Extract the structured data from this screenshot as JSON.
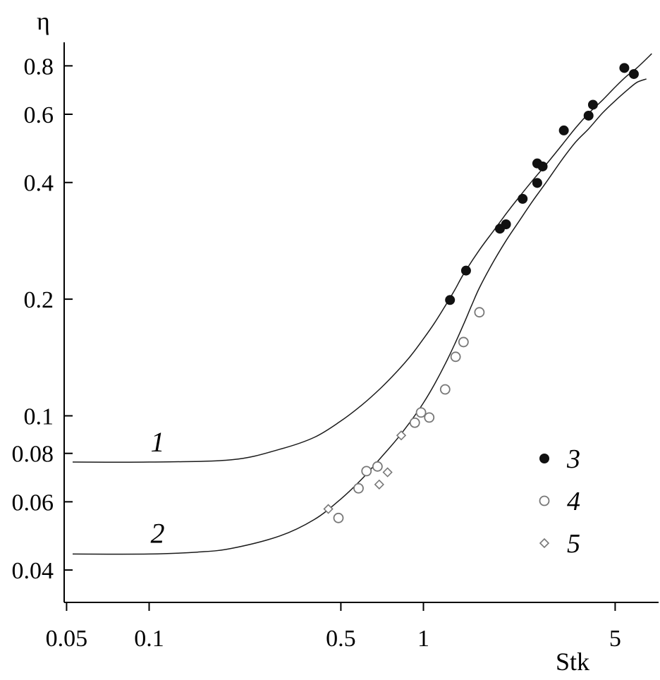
{
  "chart_data": {
    "type": "scatter",
    "title": "",
    "xlabel": "Stk",
    "ylabel": "η",
    "xscale": "log",
    "yscale": "log",
    "xlim": [
      0.049,
      7.2
    ],
    "ylim": [
      0.033,
      0.92
    ],
    "x_ticks": [
      {
        "value": 0.05,
        "label": "0.05"
      },
      {
        "value": 0.1,
        "label": "0.1"
      },
      {
        "value": 0.5,
        "label": "0.5"
      },
      {
        "value": 1,
        "label": "1"
      },
      {
        "value": 5,
        "label": "5"
      }
    ],
    "y_ticks": [
      {
        "value": 0.04,
        "label": "0.04"
      },
      {
        "value": 0.06,
        "label": "0.06"
      },
      {
        "value": 0.08,
        "label": "0.08"
      },
      {
        "value": 0.1,
        "label": "0.1"
      },
      {
        "value": 0.2,
        "label": "0.2"
      },
      {
        "value": 0.4,
        "label": "0.4"
      },
      {
        "value": 0.6,
        "label": "0.6"
      },
      {
        "value": 0.8,
        "label": "0.8"
      }
    ],
    "grid": false,
    "legend_position": "bottom-right",
    "curves": [
      {
        "name": "1",
        "x": [
          0.05,
          0.1,
          0.2,
          0.3,
          0.4,
          0.5,
          0.6,
          0.7,
          0.8,
          0.9,
          1.0,
          1.1,
          1.2,
          1.3,
          1.4,
          1.6,
          1.8,
          2.0,
          2.2,
          2.5,
          2.8,
          3.2,
          3.6,
          4.0,
          4.5,
          5.0,
          5.5,
          6.0,
          6.8
        ],
        "y": [
          0.076,
          0.076,
          0.077,
          0.082,
          0.088,
          0.097,
          0.107,
          0.118,
          0.13,
          0.143,
          0.158,
          0.174,
          0.192,
          0.211,
          0.232,
          0.268,
          0.3,
          0.332,
          0.362,
          0.405,
          0.445,
          0.5,
          0.555,
          0.603,
          0.653,
          0.705,
          0.752,
          0.79,
          0.86
        ]
      },
      {
        "name": "2",
        "x": [
          0.05,
          0.1,
          0.15,
          0.2,
          0.3,
          0.4,
          0.5,
          0.6,
          0.7,
          0.8,
          0.9,
          1.0,
          1.1,
          1.2,
          1.3,
          1.4,
          1.5,
          1.6,
          1.8,
          2.0,
          2.2,
          2.5,
          2.8,
          3.2,
          3.6,
          4.0,
          4.5,
          5.0,
          5.5,
          6.0,
          6.5
        ],
        "y": [
          0.044,
          0.044,
          0.0445,
          0.0455,
          0.049,
          0.054,
          0.061,
          0.069,
          0.078,
          0.087,
          0.097,
          0.108,
          0.121,
          0.136,
          0.153,
          0.172,
          0.193,
          0.214,
          0.25,
          0.283,
          0.313,
          0.358,
          0.4,
          0.458,
          0.51,
          0.55,
          0.605,
          0.65,
          0.69,
          0.725,
          0.74
        ]
      }
    ],
    "curve_labels": [
      {
        "text": "1",
        "x": 0.1,
        "y": 0.081
      },
      {
        "text": "2",
        "x": 0.1,
        "y": 0.047
      }
    ],
    "series": [
      {
        "name": "3",
        "marker": "filled-circle",
        "color": "#111111",
        "points": [
          [
            1.25,
            0.199
          ],
          [
            1.43,
            0.237
          ],
          [
            1.9,
            0.304
          ],
          [
            2.0,
            0.312
          ],
          [
            2.3,
            0.363
          ],
          [
            2.6,
            0.399
          ],
          [
            2.6,
            0.448
          ],
          [
            2.72,
            0.44
          ],
          [
            3.25,
            0.545
          ],
          [
            4.0,
            0.595
          ],
          [
            4.15,
            0.635
          ],
          [
            5.4,
            0.79
          ],
          [
            5.85,
            0.762
          ]
        ]
      },
      {
        "name": "4",
        "marker": "open-circle",
        "color": "#777777",
        "points": [
          [
            0.49,
            0.0545
          ],
          [
            0.58,
            0.065
          ],
          [
            0.62,
            0.072
          ],
          [
            0.68,
            0.074
          ],
          [
            0.93,
            0.096
          ],
          [
            0.98,
            0.102
          ],
          [
            1.05,
            0.099
          ],
          [
            1.2,
            0.117
          ],
          [
            1.31,
            0.142
          ],
          [
            1.4,
            0.155
          ],
          [
            1.6,
            0.185
          ]
        ]
      },
      {
        "name": "5",
        "marker": "open-diamond",
        "color": "#777777",
        "points": [
          [
            0.45,
            0.0575
          ],
          [
            0.69,
            0.0665
          ],
          [
            0.74,
            0.0715
          ],
          [
            0.83,
            0.089
          ]
        ]
      }
    ]
  }
}
